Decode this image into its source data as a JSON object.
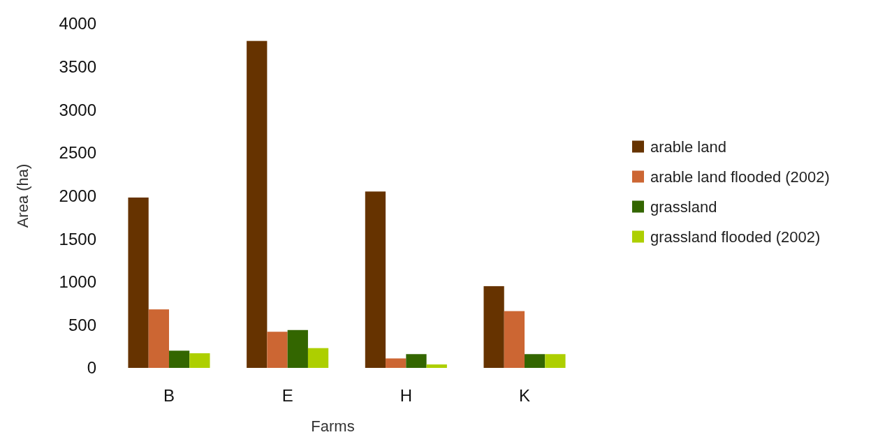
{
  "chart_data": {
    "type": "bar",
    "xlabel": "Farms",
    "ylabel": "Area (ha)",
    "categories": [
      "B",
      "E",
      "H",
      "K"
    ],
    "series": [
      {
        "name": "arable land",
        "color": "#663300",
        "values": [
          1980,
          3800,
          2050,
          950
        ]
      },
      {
        "name": "arable land flooded (2002)",
        "color": "#cc6633",
        "values": [
          680,
          420,
          110,
          660
        ]
      },
      {
        "name": "grassland",
        "color": "#336600",
        "values": [
          200,
          440,
          160,
          160
        ]
      },
      {
        "name": "grassland flooded (2002)",
        "color": "#adcf00",
        "values": [
          170,
          230,
          40,
          160
        ]
      }
    ],
    "ylim": [
      0,
      4000
    ],
    "yticks": [
      0,
      500,
      1000,
      1500,
      2000,
      2500,
      3000,
      3500,
      4000
    ],
    "grid": false,
    "legend": "right"
  }
}
